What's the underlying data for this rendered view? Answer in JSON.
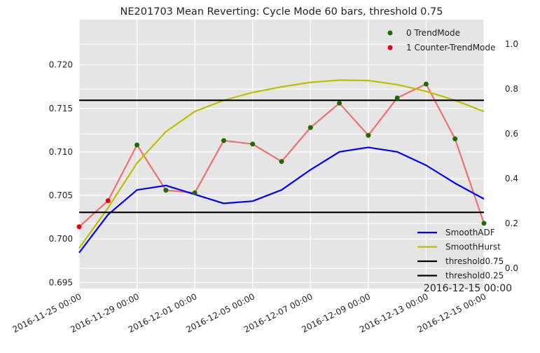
{
  "chart_data": {
    "type": "line",
    "title": "NE201703 Mean Reverting: Cycle Mode 60 bars, threshold 0.75",
    "x_tick_labels": [
      "2016-11-25 00:00",
      "2016-11-29 00:00",
      "2016-12-01 00:00",
      "2016-12-05 00:00",
      "2016-12-07 00:00",
      "2016-12-09 00:00",
      "2016-12-13 00:00",
      "2016-12-15 00:00"
    ],
    "x_tick_index": [
      0,
      2,
      4,
      6,
      8,
      10,
      12,
      14
    ],
    "x_range": [
      0,
      14
    ],
    "x_offset_label": "2016-12-15 00:00",
    "ylim_left": [
      0.6943,
      0.7252
    ],
    "ylim_right": [
      -0.09,
      1.11
    ],
    "yticks_left": [
      "0.695",
      "0.700",
      "0.705",
      "0.710",
      "0.715",
      "0.720"
    ],
    "yticks_right": [
      "0.0",
      "0.2",
      "0.4",
      "0.6",
      "0.8",
      "1.0"
    ],
    "grid": true,
    "legend_top": {
      "position": "top-right",
      "entries": [
        {
          "label": "0 TrendMode",
          "color": "#1a6e00"
        },
        {
          "label": "1 Counter-TrendMode",
          "color": "#e8000b"
        }
      ]
    },
    "legend_bottom": {
      "position": "bottom-right",
      "entries": [
        {
          "label": "SmoothADF",
          "color": "#0000ff"
        },
        {
          "label": "SmoothHurst",
          "color": "#bfbf00"
        },
        {
          "label": "threshold0.75",
          "color": "#000000"
        },
        {
          "label": "threshold0.25",
          "color": "#000000"
        }
      ]
    },
    "price_series": {
      "axis": "left",
      "color": "#f07070",
      "x": [
        0,
        1,
        2,
        3,
        4,
        5,
        6,
        7,
        8,
        9,
        10,
        11,
        12,
        13,
        14
      ],
      "values": [
        0.7014,
        0.7044,
        0.7108,
        0.7056,
        0.7053,
        0.7113,
        0.7109,
        0.7089,
        0.7128,
        0.7156,
        0.7119,
        0.7162,
        0.7178,
        0.7115,
        0.7018
      ],
      "mode": [
        1,
        1,
        0,
        0,
        0,
        0,
        0,
        0,
        0,
        0,
        0,
        0,
        0,
        0,
        0
      ]
    },
    "series": [
      {
        "name": "SmoothADF",
        "axis": "right",
        "color": "#0000ff",
        "x": [
          0,
          1,
          2,
          3,
          4,
          5,
          6,
          7,
          8,
          9,
          10,
          11,
          12,
          13,
          14
        ],
        "values": [
          0.07,
          0.24,
          0.35,
          0.37,
          0.33,
          0.29,
          0.3,
          0.35,
          0.44,
          0.52,
          0.54,
          0.52,
          0.46,
          0.38,
          0.31
        ]
      },
      {
        "name": "SmoothHurst",
        "axis": "right",
        "color": "#bfbf00",
        "x": [
          0,
          1,
          2,
          3,
          4,
          5,
          6,
          7,
          8,
          9,
          10,
          11,
          12,
          13,
          14
        ],
        "values": [
          0.09,
          0.27,
          0.47,
          0.61,
          0.7,
          0.75,
          0.785,
          0.81,
          0.83,
          0.84,
          0.838,
          0.82,
          0.79,
          0.75,
          0.7
        ]
      },
      {
        "name": "threshold0.75",
        "axis": "right",
        "color": "#000000",
        "x": [
          0,
          14
        ],
        "values": [
          0.75,
          0.75
        ]
      },
      {
        "name": "threshold0.25",
        "axis": "right",
        "color": "#000000",
        "x": [
          0,
          14
        ],
        "values": [
          0.25,
          0.25
        ]
      }
    ]
  }
}
